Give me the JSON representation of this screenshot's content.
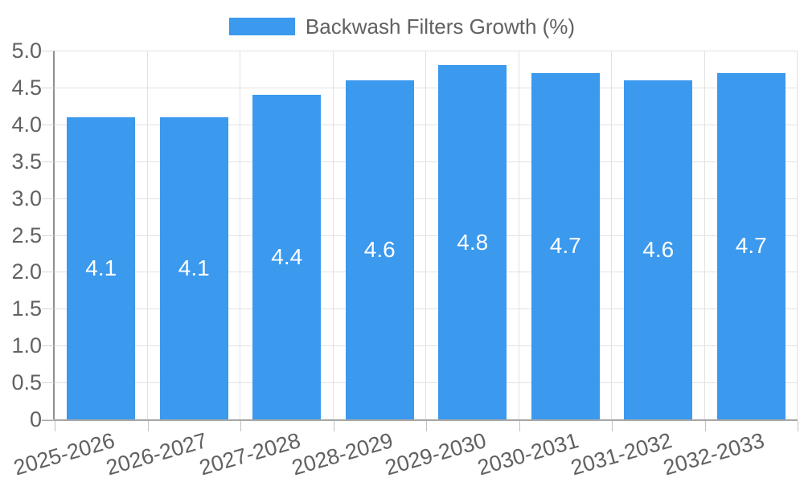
{
  "legend": {
    "label": "Backwash Filters Growth (%)"
  },
  "chart_data": {
    "type": "bar",
    "title": "Backwash Filters Growth (%)",
    "categories": [
      "2025-2026",
      "2026-2027",
      "2027-2028",
      "2028-2029",
      "2029-2030",
      "2030-2031",
      "2031-2032",
      "2032-2033"
    ],
    "values": [
      4.1,
      4.1,
      4.4,
      4.6,
      4.8,
      4.7,
      4.6,
      4.7
    ],
    "value_labels": [
      "4.1",
      "4.1",
      "4.4",
      "4.6",
      "4.8",
      "4.7",
      "4.6",
      "4.7"
    ],
    "xlabel": "",
    "ylabel": "",
    "ylim": [
      0,
      5
    ],
    "y_ticks": [
      "5.0",
      "4.5",
      "4.0",
      "3.5",
      "3.0",
      "2.5",
      "2.0",
      "1.5",
      "1.0",
      "0.5",
      "0"
    ],
    "grid": true,
    "legend_position": "top-center",
    "colors": {
      "bar": "#3B99EE",
      "grid": "#E2E2E2",
      "axis": "#A6A6A6",
      "tick_text": "#616161",
      "value_text": "#FFFFFF",
      "background": "#FFFFFF"
    }
  }
}
